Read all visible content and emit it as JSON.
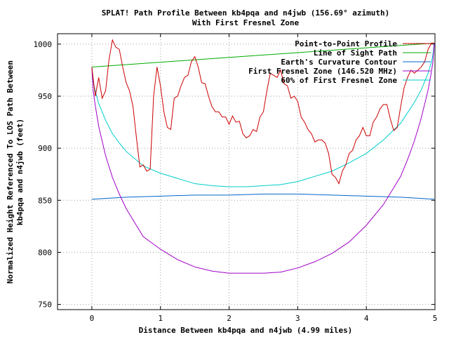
{
  "chart_data": {
    "type": "line",
    "title": "SPLAT! Path Profile Between kb4pqa and n4jwb (156.69° azimuth)",
    "subtitle": "With First Fresnel Zone",
    "xlabel": "Distance Between kb4pqa and n4jwb (4.99 miles)",
    "ylabel_line1": "Normalized Height Referenced To LOS Path Between",
    "ylabel_line2": "kb4pqa and n4jwb (feet)",
    "xlim": [
      -0.5,
      5
    ],
    "ylim": [
      745,
      1010
    ],
    "x_ticks": [
      0,
      1,
      2,
      3,
      4,
      5
    ],
    "y_ticks": [
      750,
      800,
      850,
      900,
      950,
      1000
    ],
    "grid": true,
    "legend_position": "top-right",
    "series": [
      {
        "name": "Point-to-Point Profile",
        "color": "#cc0000",
        "x": [
          0,
          0.05,
          0.1,
          0.15,
          0.2,
          0.25,
          0.3,
          0.35,
          0.4,
          0.45,
          0.5,
          0.55,
          0.6,
          0.65,
          0.7,
          0.75,
          0.8,
          0.85,
          0.9,
          0.95,
          1.0,
          1.05,
          1.1,
          1.15,
          1.2,
          1.25,
          1.3,
          1.35,
          1.4,
          1.45,
          1.5,
          1.55,
          1.6,
          1.65,
          1.7,
          1.75,
          1.8,
          1.85,
          1.9,
          1.95,
          2.0,
          2.05,
          2.1,
          2.15,
          2.2,
          2.25,
          2.3,
          2.35,
          2.4,
          2.45,
          2.5,
          2.55,
          2.6,
          2.65,
          2.7,
          2.75,
          2.8,
          2.85,
          2.9,
          2.95,
          3.0,
          3.05,
          3.1,
          3.15,
          3.2,
          3.25,
          3.3,
          3.35,
          3.4,
          3.45,
          3.5,
          3.55,
          3.6,
          3.65,
          3.7,
          3.75,
          3.8,
          3.85,
          3.9,
          3.95,
          4.0,
          4.05,
          4.1,
          4.15,
          4.2,
          4.25,
          4.3,
          4.35,
          4.4,
          4.45,
          4.5,
          4.55,
          4.6,
          4.65,
          4.7,
          4.75,
          4.8,
          4.85,
          4.9,
          4.95,
          4.99
        ],
        "y": [
          978,
          950,
          968,
          948,
          955,
          985,
          1004,
          997,
          995,
          978,
          963,
          955,
          940,
          910,
          882,
          884,
          878,
          880,
          950,
          978,
          960,
          935,
          920,
          918,
          948,
          950,
          960,
          968,
          970,
          983,
          988,
          978,
          963,
          962,
          950,
          940,
          935,
          935,
          930,
          930,
          923,
          931,
          925,
          926,
          914,
          910,
          912,
          918,
          916,
          930,
          935,
          955,
          972,
          970,
          968,
          975,
          962,
          960,
          948,
          950,
          945,
          930,
          925,
          918,
          914,
          906,
          908,
          908,
          905,
          895,
          875,
          872,
          866,
          878,
          884,
          895,
          898,
          908,
          912,
          920,
          912,
          912,
          925,
          930,
          938,
          942,
          942,
          928,
          917,
          920,
          940,
          958,
          968,
          975,
          972,
          975,
          978,
          983,
          995,
          1001,
          1001
        ]
      },
      {
        "name": "Line of Sight Path",
        "color": "#00aa00",
        "x": [
          0,
          4.99
        ],
        "y": [
          978,
          1001
        ]
      },
      {
        "name": "Earth's Curvature Contour",
        "color": "#0066cc",
        "x": [
          0,
          0.5,
          1.0,
          1.5,
          2.0,
          2.5,
          3.0,
          3.5,
          4.0,
          4.5,
          4.99
        ],
        "y": [
          851,
          853,
          854,
          855,
          855,
          856,
          856,
          855,
          854,
          853,
          851
        ]
      },
      {
        "name": "First Fresnel Zone (146.520 MHz)",
        "color": "#a000c8",
        "x": [
          0,
          0.02,
          0.05,
          0.1,
          0.2,
          0.3,
          0.4,
          0.5,
          0.75,
          1.0,
          1.25,
          1.5,
          1.75,
          2.0,
          2.25,
          2.5,
          2.75,
          3.0,
          3.25,
          3.5,
          3.75,
          4.0,
          4.25,
          4.5,
          4.6,
          4.7,
          4.8,
          4.9,
          4.95,
          4.97,
          4.99
        ],
        "y": [
          978,
          955,
          941,
          921,
          893,
          872,
          856,
          842,
          815,
          803,
          793,
          786,
          782,
          780,
          780,
          780,
          781,
          785,
          791,
          799,
          810,
          826,
          846,
          873,
          889,
          907,
          929,
          956,
          974,
          983,
          1001
        ]
      },
      {
        "name": "60% of First Fresnel Zone",
        "color": "#00cccc",
        "x": [
          0,
          0.02,
          0.05,
          0.1,
          0.2,
          0.3,
          0.4,
          0.5,
          0.75,
          1.0,
          1.25,
          1.5,
          1.75,
          2.0,
          2.25,
          2.5,
          2.75,
          3.0,
          3.25,
          3.5,
          3.75,
          4.0,
          4.25,
          4.5,
          4.6,
          4.7,
          4.8,
          4.9,
          4.95,
          4.97,
          4.99
        ],
        "y": [
          978,
          964,
          955,
          943,
          927,
          914,
          905,
          897,
          883,
          876,
          871,
          866,
          864,
          863,
          863,
          864,
          865,
          868,
          873,
          878,
          886,
          895,
          908,
          924,
          934,
          944,
          956,
          972,
          983,
          990,
          1001
        ]
      }
    ]
  }
}
